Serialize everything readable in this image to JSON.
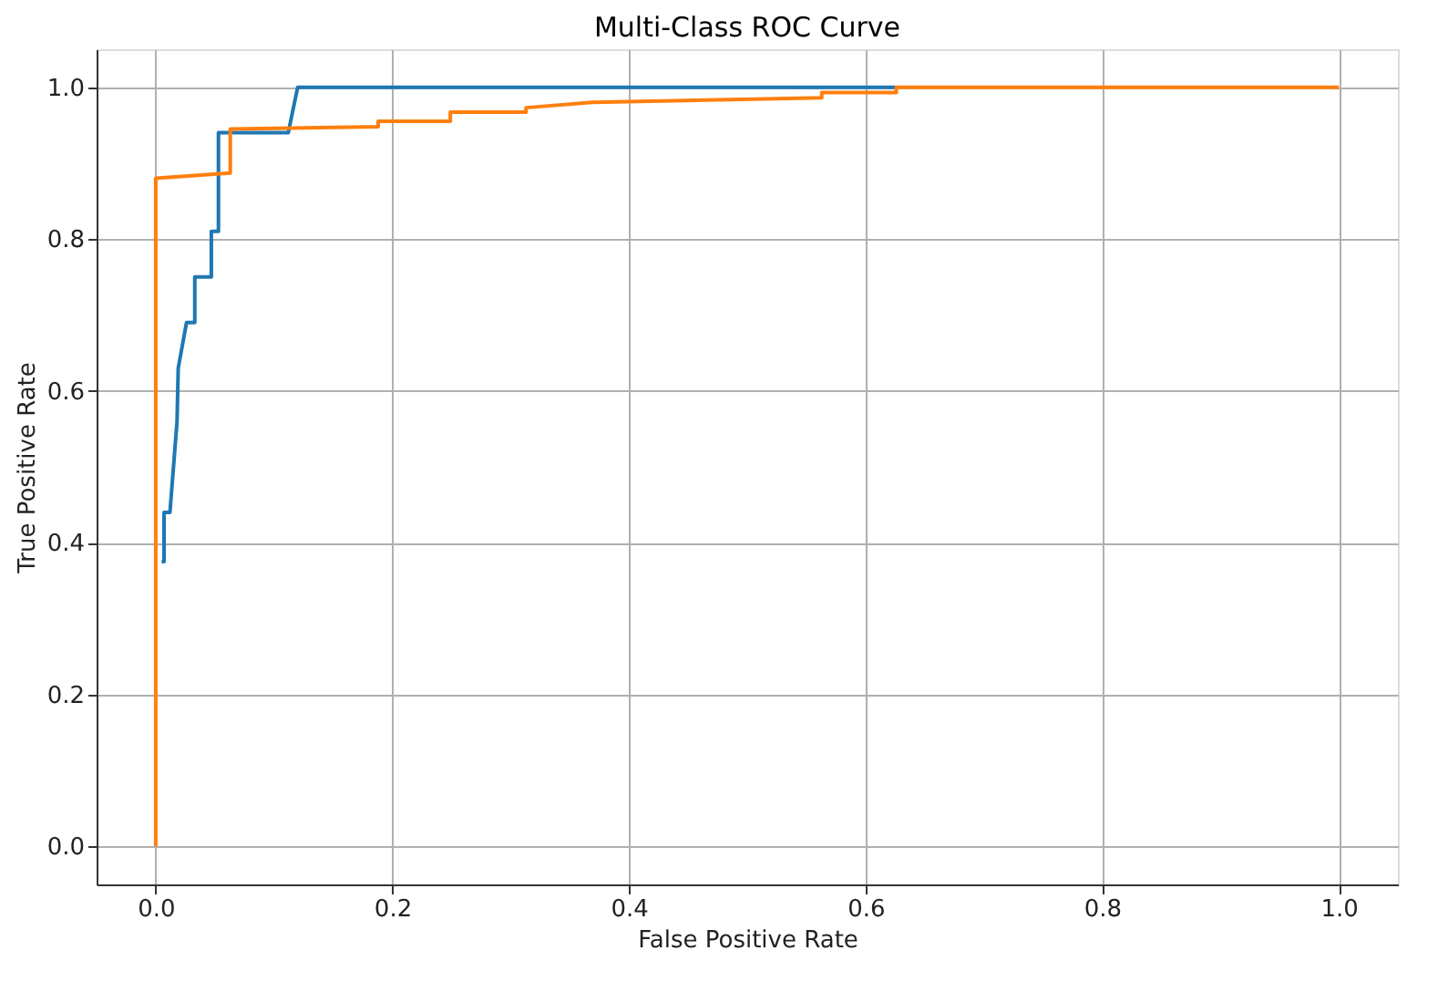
{
  "chart_data": {
    "type": "line",
    "title": "Multi-Class ROC Curve",
    "xlabel": "False Positive Rate",
    "ylabel": "True Positive Rate",
    "xlim": [
      -0.05,
      1.05
    ],
    "ylim": [
      -0.05,
      1.05
    ],
    "xticks": [
      {
        "value": 0,
        "label": "0.0"
      },
      {
        "value": 0.2,
        "label": "0.2"
      },
      {
        "value": 0.4,
        "label": "0.4"
      },
      {
        "value": 0.6,
        "label": "0.6"
      },
      {
        "value": 0.8,
        "label": "0.8"
      },
      {
        "value": 1,
        "label": "1.0"
      }
    ],
    "yticks": [
      {
        "value": 0,
        "label": "0.0"
      },
      {
        "value": 0.2,
        "label": "0.2"
      },
      {
        "value": 0.4,
        "label": "0.4"
      },
      {
        "value": 0.6,
        "label": "0.6"
      },
      {
        "value": 0.8,
        "label": "0.8"
      },
      {
        "value": 1,
        "label": "1.0"
      }
    ],
    "grid": true,
    "line_style": "solid",
    "marker": "none",
    "series": [
      {
        "color": "#1f77b4",
        "x": [
          0.005,
          0.007,
          0.007,
          0.012,
          0.018,
          0.019,
          0.026,
          0.033,
          0.033,
          0.047,
          0.047,
          0.053,
          0.053,
          0.112,
          0.12,
          0.625
        ],
        "values": [
          0.375,
          0.375,
          0.44,
          0.44,
          0.56,
          0.63,
          0.69,
          0.69,
          0.75,
          0.75,
          0.81,
          0.81,
          0.94,
          0.94,
          1.0,
          1.0
        ]
      },
      {
        "color": "#ff7f0e",
        "x": [
          0.0,
          0.0,
          0.063,
          0.063,
          0.188,
          0.188,
          0.249,
          0.249,
          0.313,
          0.313,
          0.369,
          0.563,
          0.563,
          0.626,
          0.626,
          1.0
        ],
        "values": [
          0.0,
          0.88,
          0.887,
          0.945,
          0.948,
          0.955,
          0.955,
          0.967,
          0.967,
          0.973,
          0.98,
          0.986,
          0.993,
          0.993,
          1.0,
          1.0
        ]
      }
    ]
  }
}
